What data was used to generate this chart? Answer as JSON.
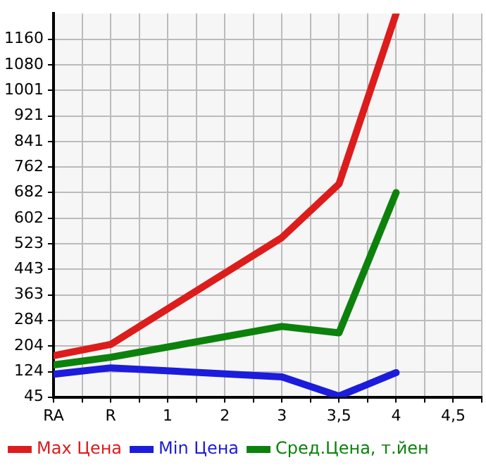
{
  "chart_data": {
    "type": "line",
    "categories": [
      "RA",
      "R",
      "1",
      "2",
      "3",
      "3,5",
      "4",
      "4,5"
    ],
    "series": [
      {
        "name": "Max Цена",
        "color": "#dd1c1c",
        "values": [
          174,
          209,
          null,
          null,
          542,
          709,
          1240,
          null
        ]
      },
      {
        "name": "Min Цена",
        "color": "#1c1cdd",
        "values": [
          116,
          136,
          null,
          null,
          108,
          48,
          121,
          null
        ]
      },
      {
        "name": "Сред.Цена, т.йен",
        "color": "#0c820c",
        "values": [
          145,
          169,
          null,
          null,
          265,
          245,
          682,
          null
        ]
      }
    ],
    "ylim": [
      45,
      1240
    ],
    "yticks": [
      45,
      124,
      204,
      284,
      363,
      443,
      523,
      602,
      682,
      762,
      841,
      921,
      1001,
      1080,
      1160
    ],
    "grid": true,
    "legend": "bottom",
    "marker": "none",
    "line_style": "solid"
  }
}
